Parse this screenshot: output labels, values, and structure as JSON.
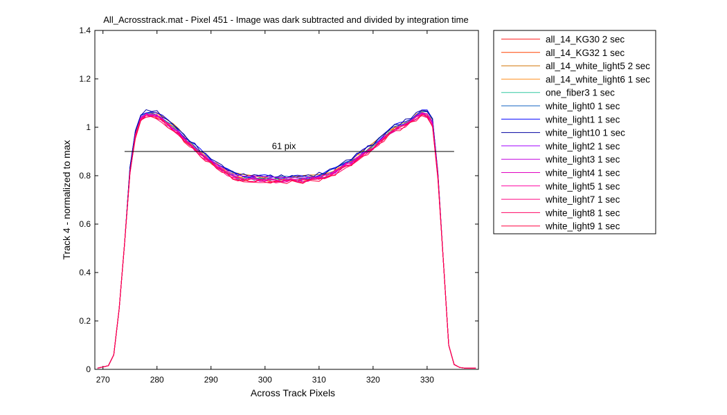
{
  "chart_data": {
    "type": "line",
    "title": "All_Acrosstrack.mat - Pixel 451 - Image was dark subtracted and divided by integration time",
    "xlabel": "Across Track Pixels",
    "ylabel": "Track 4 - normalized to max",
    "xlim": [
      268.5,
      339.5
    ],
    "ylim": [
      0,
      1.4
    ],
    "xticks": [
      "270",
      "280",
      "290",
      "300",
      "310",
      "320",
      "330"
    ],
    "yticks": [
      "0",
      "0.2",
      "0.4",
      "0.6",
      "0.8",
      "1",
      "1.2",
      "1.4"
    ],
    "grid": false,
    "legend_position": "outside-right",
    "x": [
      269,
      270,
      271,
      272,
      273,
      274,
      275,
      276,
      277,
      278,
      279,
      280,
      281,
      282,
      283,
      284,
      285,
      286,
      287,
      288,
      289,
      290,
      291,
      292,
      293,
      294,
      295,
      296,
      297,
      298,
      299,
      300,
      301,
      302,
      303,
      304,
      305,
      306,
      307,
      308,
      309,
      310,
      311,
      312,
      313,
      314,
      315,
      316,
      317,
      318,
      319,
      320,
      321,
      322,
      323,
      324,
      325,
      326,
      327,
      328,
      329,
      330,
      331,
      332,
      333,
      334,
      335,
      336,
      337,
      338,
      339
    ],
    "base_profile": [
      0.005,
      0.01,
      0.015,
      0.06,
      0.25,
      0.52,
      0.82,
      0.97,
      1.04,
      1.055,
      1.06,
      1.05,
      1.035,
      1.015,
      1.0,
      0.98,
      0.955,
      0.935,
      0.915,
      0.895,
      0.875,
      0.86,
      0.845,
      0.83,
      0.815,
      0.8,
      0.795,
      0.79,
      0.79,
      0.79,
      0.788,
      0.787,
      0.786,
      0.785,
      0.785,
      0.785,
      0.785,
      0.785,
      0.786,
      0.788,
      0.79,
      0.795,
      0.8,
      0.81,
      0.82,
      0.835,
      0.85,
      0.86,
      0.875,
      0.89,
      0.905,
      0.92,
      0.94,
      0.96,
      0.98,
      0.995,
      1.005,
      1.015,
      1.03,
      1.045,
      1.06,
      1.055,
      1.02,
      0.8,
      0.45,
      0.1,
      0.02,
      0.008,
      0.005,
      0.005,
      0.005
    ],
    "series": [
      {
        "name": "all_14_KG30 2 sec",
        "color": "#ff2020",
        "offset": 0.0
      },
      {
        "name": "all_14_KG32 1 sec",
        "color": "#ff4000",
        "offset": -0.005
      },
      {
        "name": "all_14_white_light5 2 sec",
        "color": "#d07000",
        "offset": 0.008
      },
      {
        "name": "all_14_white_light6 1 sec",
        "color": "#ff9020",
        "offset": 0.004
      },
      {
        "name": "one_fiber3 1 sec",
        "color": "#30c8a0",
        "offset": -0.002
      },
      {
        "name": "white_light0 1 sec",
        "color": "#1060c0",
        "offset": 0.006
      },
      {
        "name": "white_light1 1 sec",
        "color": "#0000ff",
        "offset": 0.01
      },
      {
        "name": "white_light10 1 sec",
        "color": "#0000a0",
        "offset": 0.012
      },
      {
        "name": "white_light2 1 sec",
        "color": "#a000ff",
        "offset": -0.003
      },
      {
        "name": "white_light3 1 sec",
        "color": "#c000e0",
        "offset": 0.002
      },
      {
        "name": "white_light4 1 sec",
        "color": "#e000c0",
        "offset": -0.006
      },
      {
        "name": "white_light5 1 sec",
        "color": "#ff00a0",
        "offset": -0.004
      },
      {
        "name": "white_light7 1 sec",
        "color": "#ff0080",
        "offset": -0.008
      },
      {
        "name": "white_light8 1 sec",
        "color": "#ff0060",
        "offset": -0.01
      },
      {
        "name": "white_light9 1 sec",
        "color": "#ff0040",
        "offset": -0.012
      }
    ],
    "annotations": [
      {
        "text": "61 pix",
        "x": 303.5,
        "y": 0.91
      }
    ],
    "reference_lines": [
      {
        "x1": 274,
        "x2": 335,
        "y": 0.9,
        "color": "#000000"
      }
    ]
  }
}
